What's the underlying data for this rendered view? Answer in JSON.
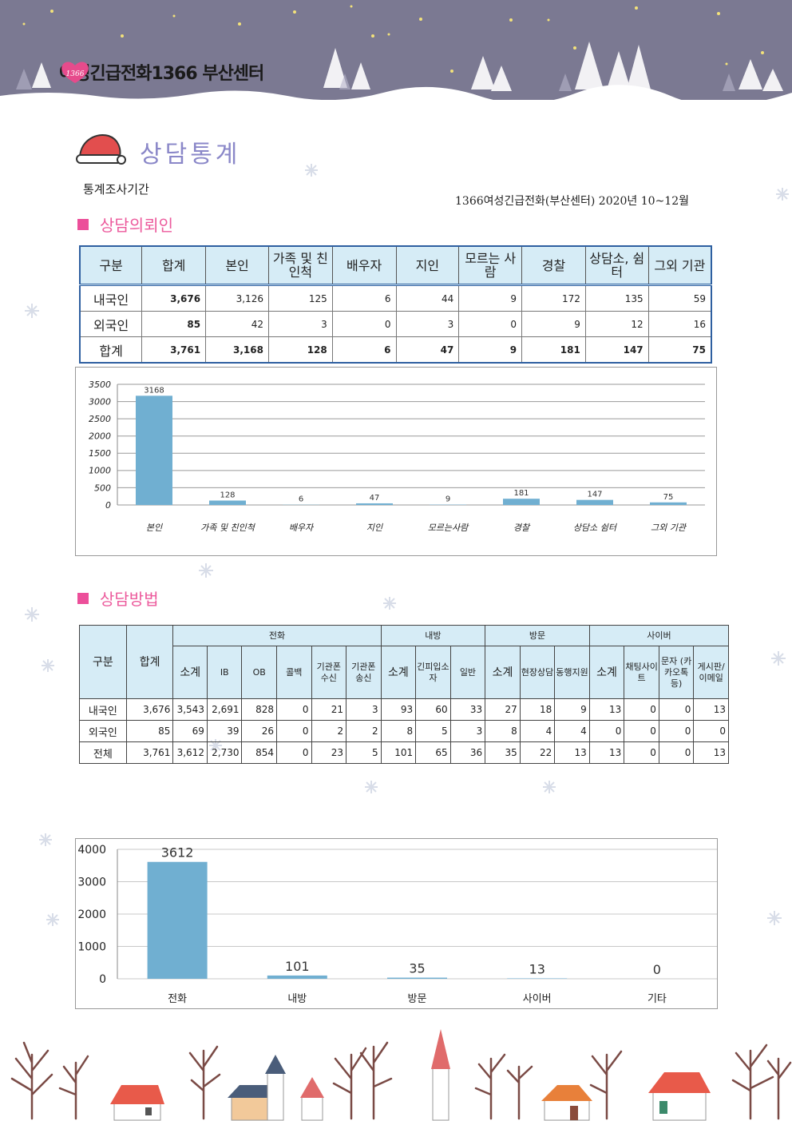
{
  "header": {
    "org_name": "여성긴급전화1366 부산센터",
    "badge": "1366"
  },
  "page": {
    "title": "상담통계",
    "period_label": "통계조사기간",
    "period_value": "1366여성긴급전화(부산센터) 2020년 10~12월"
  },
  "section1": {
    "heading": "상담의뢰인",
    "columns": [
      "구분",
      "합계",
      "본인",
      "가족 및 친인척",
      "배우자",
      "지인",
      "모르는 사람",
      "경찰",
      "상담소, 쉼터",
      "그외 기관"
    ],
    "rows": [
      [
        "내국인",
        "3,676",
        "3,126",
        "125",
        "6",
        "44",
        "9",
        "172",
        "135",
        "59"
      ],
      [
        "외국인",
        "85",
        "42",
        "3",
        "0",
        "3",
        "0",
        "9",
        "12",
        "16"
      ],
      [
        "합계",
        "3,761",
        "3,168",
        "128",
        "6",
        "47",
        "9",
        "181",
        "147",
        "75"
      ]
    ]
  },
  "section2": {
    "heading": "상담방법",
    "group_headers": [
      "구분",
      "합계",
      "전화",
      "내방",
      "방문",
      "사이버"
    ],
    "sub_headers": [
      "소계",
      "IB",
      "OB",
      "콜백",
      "기관폰 수신",
      "기관폰 송신",
      "소계",
      "긴피입소자",
      "일반",
      "소계",
      "현장상담",
      "동행지원",
      "소계",
      "채팅사이트",
      "문자 (카카오톡등)",
      "게시판/이메일"
    ],
    "rows": [
      [
        "내국인",
        "3,676",
        "3,543",
        "2,691",
        "828",
        "0",
        "21",
        "3",
        "93",
        "60",
        "33",
        "27",
        "18",
        "9",
        "13",
        "0",
        "0",
        "13"
      ],
      [
        "외국인",
        "85",
        "69",
        "39",
        "26",
        "0",
        "2",
        "2",
        "8",
        "5",
        "3",
        "8",
        "4",
        "4",
        "0",
        "0",
        "0",
        "0"
      ],
      [
        "전체",
        "3,761",
        "3,612",
        "2,730",
        "854",
        "0",
        "23",
        "5",
        "101",
        "65",
        "36",
        "35",
        "22",
        "13",
        "13",
        "0",
        "0",
        "13"
      ]
    ]
  },
  "chart_data": [
    {
      "type": "bar",
      "categories": [
        "본인",
        "가족 및 친인척",
        "배우자",
        "지인",
        "모르는사람",
        "경찰",
        "상담소 쉼터",
        "그외 기관"
      ],
      "values": [
        3168,
        128,
        6,
        47,
        9,
        181,
        147,
        75
      ],
      "yticks": [
        0,
        500,
        1000,
        1500,
        2000,
        2500,
        3000,
        3500
      ],
      "ylim": [
        0,
        3500
      ],
      "grid": true,
      "color": "#70afd1"
    },
    {
      "type": "bar",
      "categories": [
        "전화",
        "내방",
        "방문",
        "사이버",
        "기타"
      ],
      "values": [
        3612,
        101,
        35,
        13,
        0
      ],
      "yticks": [
        0,
        1000,
        2000,
        3000,
        4000
      ],
      "ylim": [
        0,
        4000
      ],
      "grid": true,
      "color": "#70afd1"
    }
  ]
}
